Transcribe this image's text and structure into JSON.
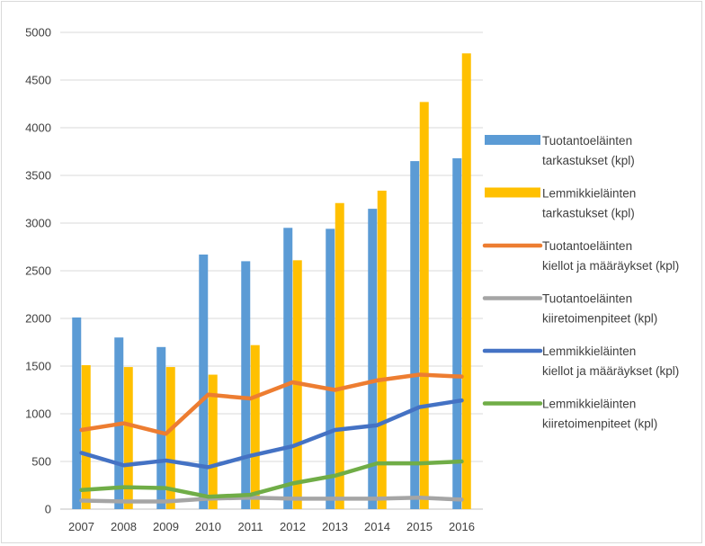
{
  "chart_data": {
    "type": "bar",
    "title": "",
    "xlabel": "",
    "ylabel": "",
    "ylim": [
      0,
      5000
    ],
    "yticks": [
      0,
      500,
      1000,
      1500,
      2000,
      2500,
      3000,
      3500,
      4000,
      4500,
      5000
    ],
    "grid": true,
    "legend_position": "right",
    "categories": [
      "2007",
      "2008",
      "2009",
      "2010",
      "2011",
      "2012",
      "2013",
      "2014",
      "2015",
      "2016"
    ],
    "bar_series": [
      {
        "legend_lines": [
          "Tuotantoeläinten",
          "tarkastukset (kpl)"
        ],
        "color": "#5b9bd5",
        "values": [
          2010,
          1800,
          1700,
          2670,
          2600,
          2950,
          2940,
          3150,
          3650,
          3680
        ]
      },
      {
        "legend_lines": [
          "Lemmikkieläinten",
          "tarkastukset (kpl)"
        ],
        "color": "#ffc000",
        "values": [
          1510,
          1490,
          1490,
          1410,
          1720,
          2610,
          3210,
          3340,
          4270,
          4780
        ]
      }
    ],
    "line_series": [
      {
        "legend_lines": [
          "Tuotantoeläinten",
          "kiellot ja määräykset (kpl)"
        ],
        "color": "#ed7d31",
        "values": [
          830,
          900,
          790,
          1200,
          1160,
          1330,
          1250,
          1350,
          1410,
          1390
        ]
      },
      {
        "legend_lines": [
          "Tuotantoeläinten",
          "kiiretoimenpiteet (kpl)"
        ],
        "color": "#a5a5a5",
        "values": [
          90,
          80,
          80,
          110,
          120,
          110,
          110,
          110,
          120,
          100
        ]
      },
      {
        "legend_lines": [
          "Lemmikkieläinten",
          "kiellot ja määräykset (kpl)"
        ],
        "color": "#4472c4",
        "values": [
          590,
          460,
          510,
          440,
          560,
          660,
          830,
          880,
          1070,
          1140
        ]
      },
      {
        "legend_lines": [
          "Lemmikkieläinten",
          "kiiretoimenpiteet  (kpl)"
        ],
        "color": "#70ad47",
        "values": [
          200,
          230,
          220,
          130,
          150,
          270,
          350,
          480,
          480,
          500
        ]
      }
    ]
  }
}
